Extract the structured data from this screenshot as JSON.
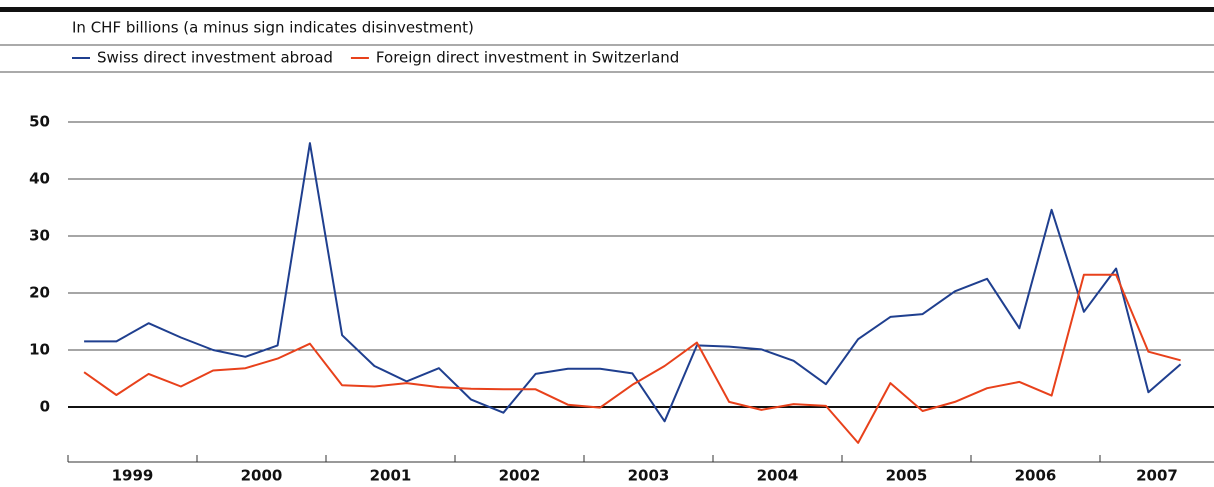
{
  "chart_data": {
    "type": "line",
    "subtitle": "In CHF billions (a minus sign indicates disinvestment)",
    "years": [
      "1999",
      "2000",
      "2001",
      "2002",
      "2003",
      "2004",
      "2005",
      "2006",
      "2007"
    ],
    "ylim": [
      -10,
      50
    ],
    "yticks": [
      0,
      10,
      20,
      30,
      40,
      50
    ],
    "grid": true,
    "series": [
      {
        "name": "Swiss direct investment abroad",
        "color": "#1f3f8f",
        "values": [
          11.5,
          11.5,
          14.7,
          12.2,
          10,
          8.8,
          10.8,
          46.3,
          12.6,
          7.2,
          4.5,
          6.8,
          1.3,
          -1.0,
          5.8,
          6.7,
          6.7,
          5.9,
          -2.5,
          10.8,
          10.6,
          10.1,
          8.1,
          4.0,
          11.9,
          15.8,
          16.3,
          20.3,
          22.5,
          13.8,
          34.6,
          16.7,
          24.3,
          2.6,
          7.5
        ]
      },
      {
        "name": "Foreign direct investment in Switzerland",
        "color": "#e8411b",
        "values": [
          6.1,
          2.1,
          5.8,
          3.6,
          6.4,
          6.8,
          8.5,
          11.1,
          3.8,
          3.6,
          4.2,
          3.5,
          3.2,
          3.1,
          3.1,
          0.4,
          -0.1,
          3.9,
          7.2,
          11.3,
          0.9,
          -0.5,
          0.5,
          0.2,
          -6.3,
          4.2,
          -0.7,
          0.9,
          3.3,
          4.4,
          2.0,
          23.2,
          23.2,
          9.7,
          8.2
        ]
      }
    ]
  }
}
